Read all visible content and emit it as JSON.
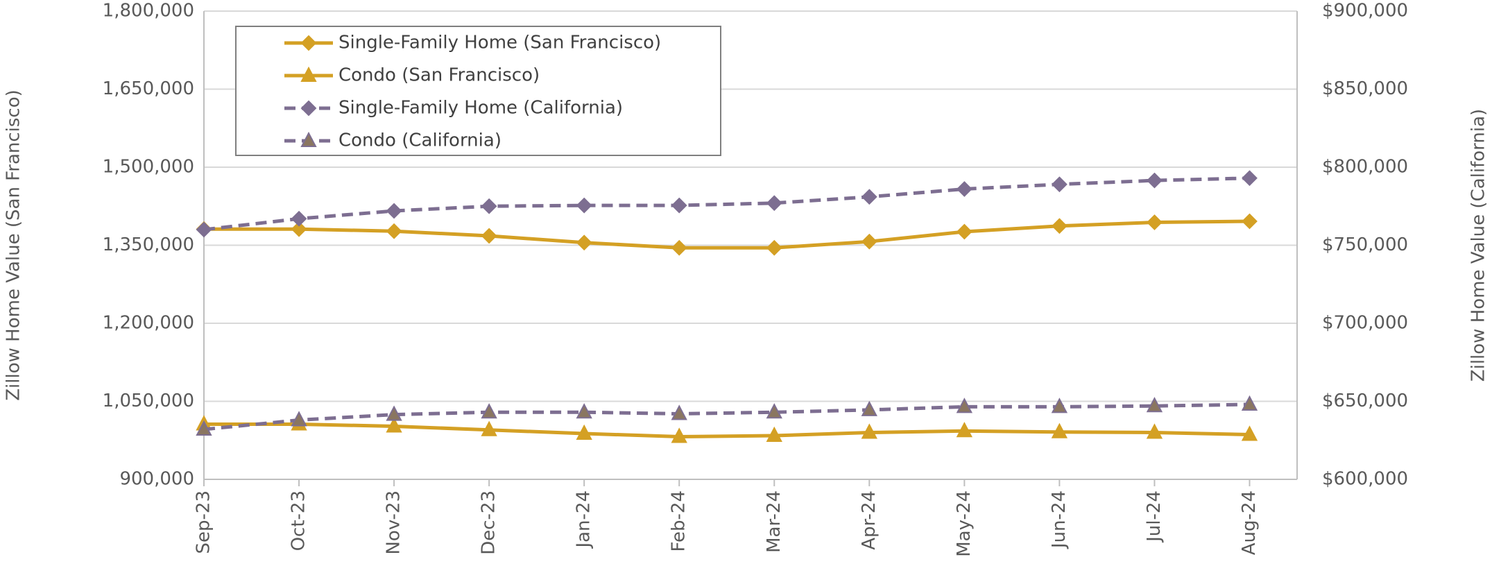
{
  "chart_data": {
    "type": "line",
    "categories": [
      "Sep-23",
      "Oct-23",
      "Nov-23",
      "Dec-23",
      "Jan-24",
      "Feb-24",
      "Mar-24",
      "Apr-24",
      "May-24",
      "Jun-24",
      "Jul-24",
      "Aug-24"
    ],
    "ylabel": "Zillow Home Value (San Francisco)",
    "y2label": "Zillow Home Value (California)",
    "ylim": [
      900000,
      1800000
    ],
    "yticks": [
      {
        "value": 900000,
        "label": "900,000"
      },
      {
        "value": 1050000,
        "label": "1,050,000"
      },
      {
        "value": 1200000,
        "label": "1,200,000"
      },
      {
        "value": 1350000,
        "label": "1,350,000"
      },
      {
        "value": 1500000,
        "label": "1,500,000"
      },
      {
        "value": 1650000,
        "label": "1,650,000"
      },
      {
        "value": 1800000,
        "label": "1,800,000"
      }
    ],
    "y2lim": [
      600000,
      900000
    ],
    "y2ticks": [
      {
        "value": 600000,
        "label": "$600,000"
      },
      {
        "value": 650000,
        "label": "$650,000"
      },
      {
        "value": 700000,
        "label": "$700,000"
      },
      {
        "value": 750000,
        "label": "$750,000"
      },
      {
        "value": 800000,
        "label": "$800,000"
      },
      {
        "value": 850000,
        "label": "$850,000"
      },
      {
        "value": 900000,
        "label": "$900,000"
      }
    ],
    "grid": true,
    "legend": "upper left",
    "series": [
      {
        "name": "Single-Family Home (San Francisco)",
        "color": "#d4a024",
        "marker": "diamond",
        "dash": false,
        "values": [
          1381000,
          1381000,
          1377000,
          1368000,
          1355000,
          1345000,
          1345000,
          1357000,
          1376000,
          1387000,
          1394000,
          1396000
        ]
      },
      {
        "name": "Condo (San Francisco)",
        "color": "#d4a024",
        "marker": "triangle",
        "dash": false,
        "values": [
          1006000,
          1006000,
          1002000,
          995000,
          988000,
          982000,
          984000,
          990000,
          993000,
          991000,
          990000,
          986000
        ]
      },
      {
        "name": "Single-Family Home (California)",
        "color": "#7d6e91",
        "marker": "diamond",
        "dash": true,
        "axis": "y2",
        "values": [
          760000,
          767000,
          772000,
          775000,
          775500,
          775500,
          777000,
          781000,
          786000,
          789000,
          791500,
          793000
        ]
      },
      {
        "name": "Condo (California)",
        "color": "#7d6e91",
        "marker": "triangle",
        "markerFill": "#8a7660",
        "dash": true,
        "axis": "y2",
        "values": [
          632000,
          638000,
          641500,
          643000,
          643000,
          642000,
          643000,
          644500,
          646500,
          646500,
          647000,
          648000
        ]
      }
    ]
  }
}
